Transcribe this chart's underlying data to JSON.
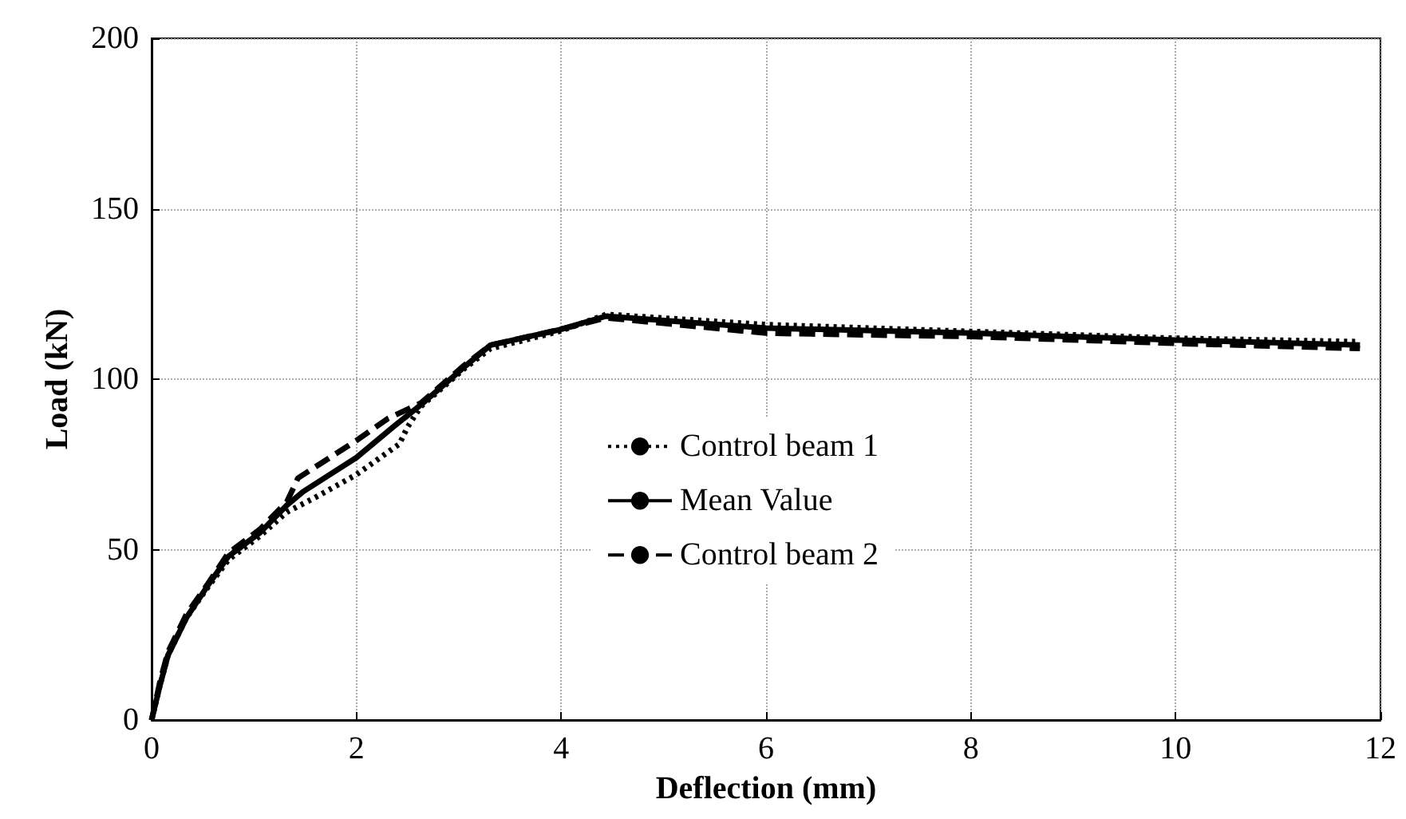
{
  "chart_data": {
    "type": "line",
    "xlabel": "Deflection (mm)",
    "ylabel": "Load (kN)",
    "xlim": [
      0,
      12
    ],
    "xticks": [
      0,
      2,
      4,
      6,
      8,
      10,
      12
    ],
    "ylim": [
      0,
      200
    ],
    "yticks": [
      0,
      50,
      100,
      150,
      200
    ],
    "grid": true,
    "legend": "center",
    "marker": "none",
    "series": [
      {
        "name": "Control beam 1",
        "color": "#000000",
        "line_style": "dotted",
        "x": [
          0,
          0.08,
          0.16,
          0.34,
          0.55,
          0.75,
          1.06,
          1.32,
          1.58,
          2.0,
          2.42,
          2.5,
          2.63,
          3.05,
          3.31,
          3.98,
          4.44,
          6.0,
          8.0,
          10.0,
          11.8
        ],
        "values": [
          0,
          10,
          19,
          30,
          39,
          47,
          54,
          61,
          65,
          72,
          81,
          86,
          92,
          103,
          109,
          114,
          119,
          116,
          114,
          112,
          111
        ]
      },
      {
        "name": "Mean Value",
        "color": "#000000",
        "line_style": "solid",
        "x": [
          0,
          0.08,
          0.16,
          0.34,
          0.55,
          0.75,
          1.06,
          1.32,
          1.48,
          2.0,
          2.36,
          2.63,
          3.05,
          3.31,
          3.98,
          4.44,
          6.0,
          8.0,
          10.0,
          11.8
        ],
        "values": [
          0,
          10,
          19,
          30,
          39.5,
          48,
          55,
          63,
          67,
          77,
          86,
          92.5,
          103.5,
          110,
          114.5,
          118.5,
          115,
          113.5,
          111.5,
          110
        ]
      },
      {
        "name": "Control beam 2",
        "color": "#000000",
        "line_style": "dashed",
        "x": [
          0,
          0.08,
          0.16,
          0.34,
          0.55,
          0.75,
          1.06,
          1.32,
          1.43,
          2.0,
          2.31,
          2.63,
          3.05,
          3.31,
          3.98,
          4.44,
          6.0,
          8.0,
          10.0,
          11.8
        ],
        "values": [
          0,
          11,
          20,
          31,
          40,
          49,
          56,
          64,
          71,
          82,
          88.5,
          93,
          104,
          110,
          114.5,
          118,
          113.5,
          112.5,
          110.5,
          109
        ]
      }
    ]
  }
}
